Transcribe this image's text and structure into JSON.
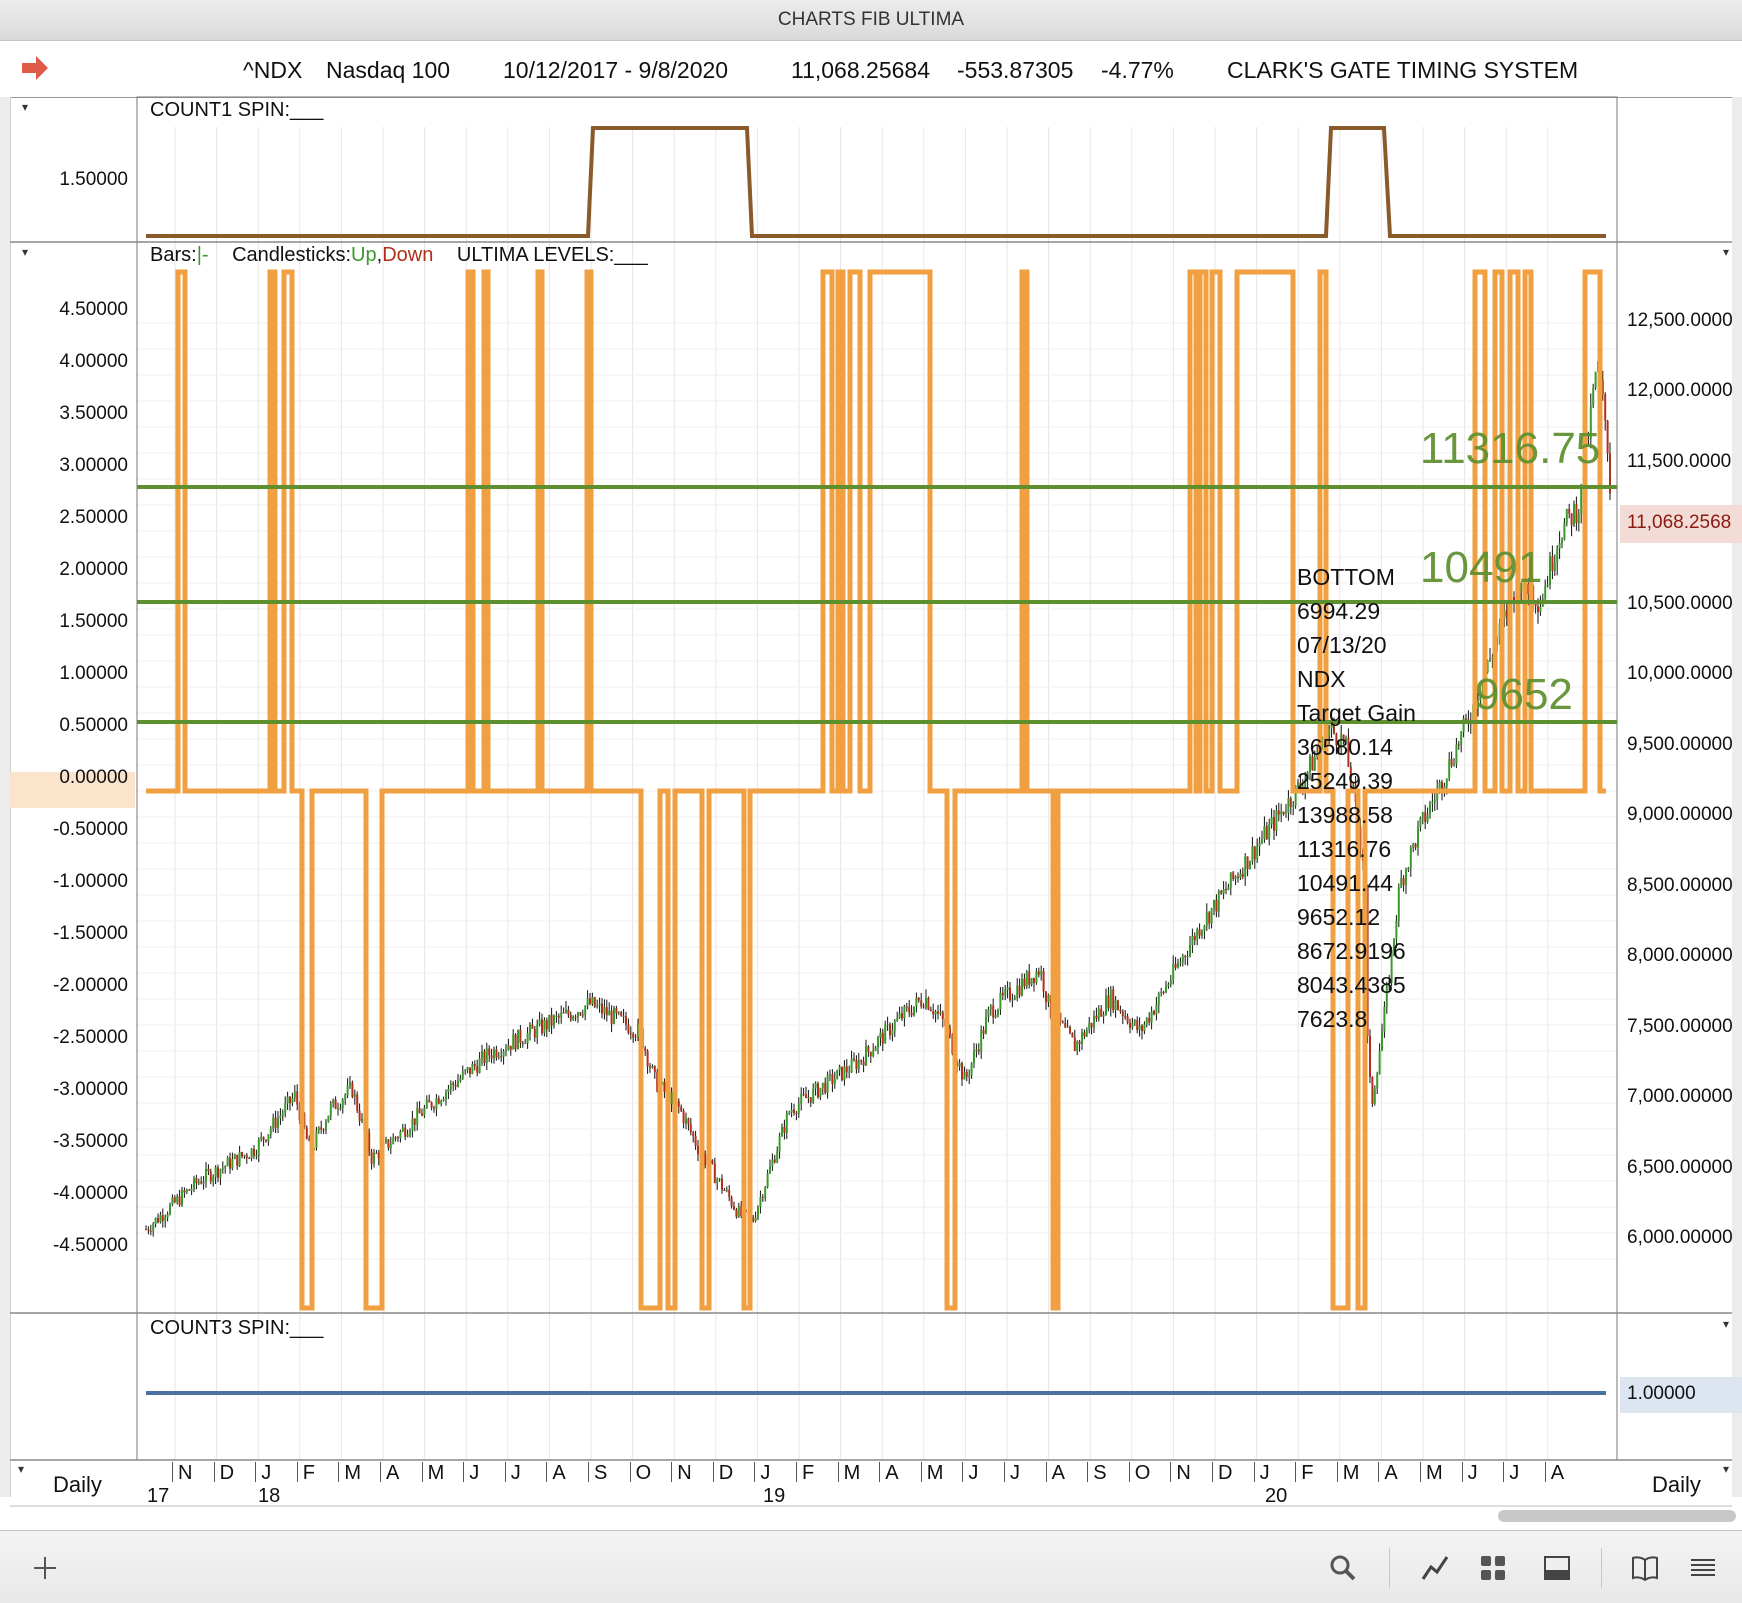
{
  "window": {
    "title": "CHARTS FIB ULTIMA"
  },
  "header": {
    "symbol": "^NDX",
    "name": "Nasdaq 100",
    "date_range": "10/12/2017 - 9/8/2020",
    "last": "11,068.25684",
    "change": "-553.87305",
    "change_pct": "-4.77%",
    "system": "CLARK'S GATE TIMING SYSTEM",
    "arrow_color": "#e05a47"
  },
  "panels": {
    "count1": {
      "label": "COUNT1 SPIN:___",
      "ytick": "1.50000",
      "line_color": "#8a5a2b"
    },
    "main": {
      "legend_bars": "Bars:",
      "legend_bars_sym": "|-",
      "legend_candles": "Candlesticks:",
      "legend_up": "Up",
      "legend_comma": ",",
      "legend_down": "Down",
      "legend_ultima": "ULTIMA LEVELS:___",
      "up_color": "#3a9a2a",
      "down_color": "#b0301a",
      "ultima_color": "#f0a040",
      "level_color": "#5d8f2e",
      "left_ticks": [
        "4.50000",
        "4.00000",
        "3.50000",
        "3.00000",
        "2.50000",
        "2.00000",
        "1.50000",
        "1.00000",
        "0.50000",
        "0.00000",
        "-0.50000",
        "-1.00000",
        "-1.50000",
        "-2.00000",
        "-2.50000",
        "-3.00000",
        "-3.50000",
        "-4.00000",
        "-4.50000"
      ],
      "right_ticks": [
        "12,500.0000",
        "12,000.0000",
        "11,500.0000",
        "11,068.2568",
        "10,500.0000",
        "10,000.0000",
        "9,500.00000",
        "9,000.00000",
        "8,500.00000",
        "8,000.00000",
        "7,500.00000",
        "7,000.00000",
        "6,500.00000",
        "6,000.00000"
      ],
      "level_labels": [
        "11316.75",
        "10491",
        "9652"
      ],
      "annotation": [
        "BOTTOM",
        "6994.29",
        "07/13/20",
        "NDX",
        "Target Gain",
        "36580.14",
        "25249.39",
        "13988.58",
        "11316.76",
        "10491.44",
        "9652.12",
        "8672.9196",
        "8043.4385",
        "7623.8"
      ]
    },
    "count3": {
      "label": "COUNT3 SPIN:___",
      "ytick": "1.00000",
      "line_color": "#4a6fa0"
    }
  },
  "axis": {
    "months": [
      "N",
      "D",
      "J",
      "F",
      "M",
      "A",
      "M",
      "J",
      "J",
      "A",
      "S",
      "O",
      "N",
      "D",
      "J",
      "F",
      "M",
      "A",
      "M",
      "J",
      "J",
      "A",
      "S",
      "O",
      "N",
      "D",
      "J",
      "F",
      "M",
      "A",
      "M",
      "J",
      "J",
      "A"
    ],
    "years": [
      "17",
      "18",
      "19",
      "20"
    ],
    "period_left": "Daily",
    "period_right": "Daily"
  },
  "toolbar": {
    "icons": [
      "add-icon",
      "search-icon",
      "line-chart-icon",
      "grid-icon",
      "panel-icon",
      "book-icon",
      "list-icon"
    ]
  }
}
